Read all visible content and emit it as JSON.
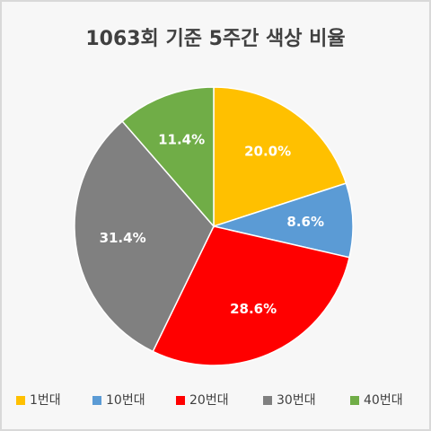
{
  "chart_data": {
    "type": "pie",
    "title": "1063회 기준 5주간 색상 비율",
    "categories": [
      "1번대",
      "10번대",
      "20번대",
      "30번대",
      "40번대"
    ],
    "values": [
      20.0,
      8.6,
      28.6,
      31.4,
      11.4
    ],
    "value_labels": [
      "20.0%",
      "8.6%",
      "28.6%",
      "31.4%",
      "11.4%"
    ],
    "colors": [
      "#FFC000",
      "#5B9BD5",
      "#FF0000",
      "#808080",
      "#70AD47"
    ],
    "legend": "bottom"
  }
}
